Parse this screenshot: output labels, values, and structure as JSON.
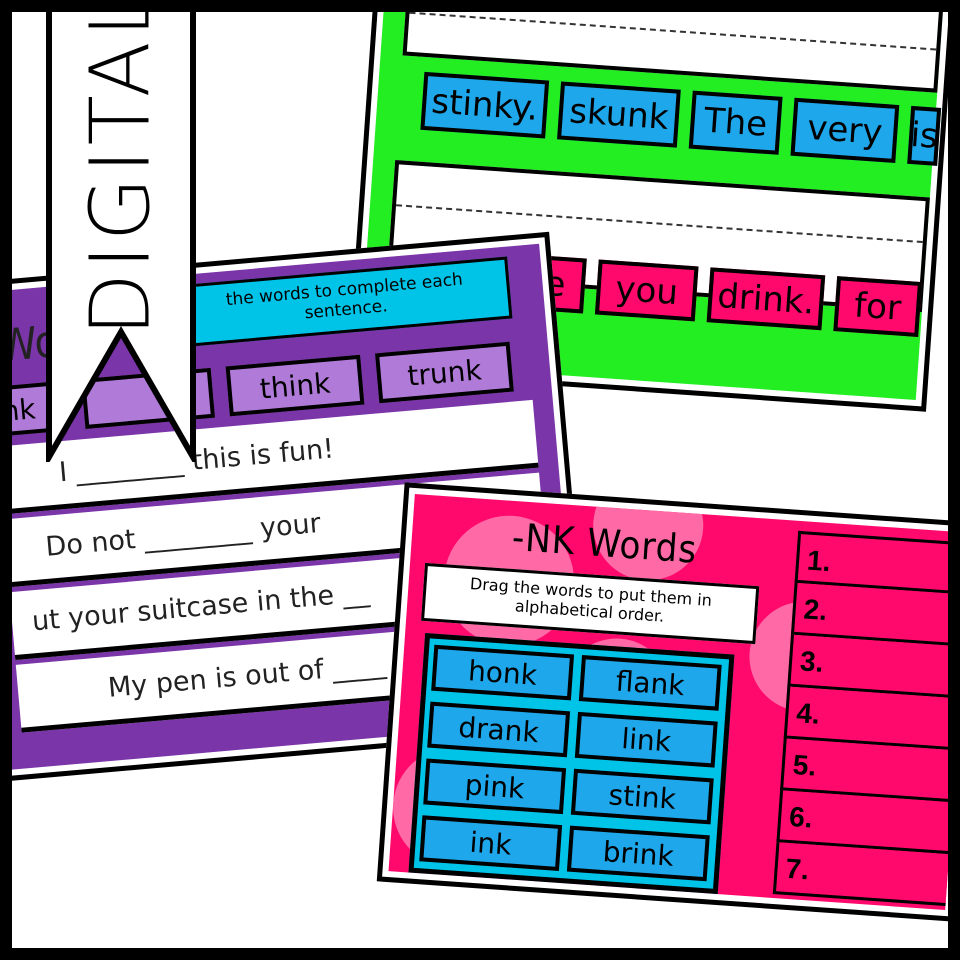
{
  "banner": {
    "label": "DIGITAL"
  },
  "green_card": {
    "blue_tiles": [
      "stinky.",
      "skunk",
      "The",
      "very",
      "is"
    ],
    "pink_tiles": [
      "e",
      "you",
      "drink.",
      "for"
    ]
  },
  "purple_card": {
    "title_partial": "Wo",
    "instruction": "the words to complete each sentence.",
    "tiles": [
      "nk",
      "",
      "think",
      "trunk"
    ],
    "sentences": [
      "I ________ this is fun!",
      "Do not ________ your",
      "ut your suitcase in the __",
      "My pen is out of ____"
    ]
  },
  "pink_card": {
    "title": "-NK Words",
    "instruction": "Drag the words to put them in alphabetical order.",
    "tiles": [
      "honk",
      "flank",
      "drank",
      "link",
      "pink",
      "stink",
      "ink",
      "brink"
    ],
    "numbers": [
      "1.",
      "2.",
      "3.",
      "4.",
      "5.",
      "6.",
      "7."
    ]
  },
  "colors": {
    "green": "#22ee22",
    "purple": "#7a35a8",
    "pink": "#ff0a6c",
    "blue": "#1ea7ea",
    "cyan": "#00c3e8"
  }
}
